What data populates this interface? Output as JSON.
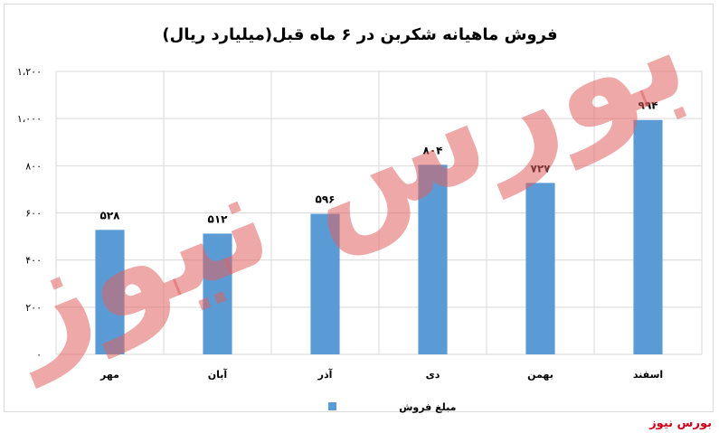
{
  "chart_data": {
    "type": "bar",
    "title": "فروش ماهیانه شکربن در ۶ ماه قبل(میلیارد ریال)",
    "categories": [
      "مهر",
      "آبان",
      "آذر",
      "دی",
      "بهمن",
      "اسفند"
    ],
    "series": [
      {
        "name": "مبلغ فروش",
        "values": [
          528,
          512,
          596,
          804,
          727,
          994
        ],
        "data_labels": [
          "۵۲۸",
          "۵۱۲",
          "۵۹۶",
          "۸۰۴",
          "۷۲۷",
          "۹۹۴"
        ]
      }
    ],
    "ylim": [
      0,
      1200
    ],
    "yticks": [
      0,
      200,
      400,
      600,
      800,
      1000,
      1200
    ],
    "ytick_labels": [
      "۰",
      "۲۰۰",
      "۴۰۰",
      "۶۰۰",
      "۸۰۰",
      "۱،۰۰۰",
      "۱،۲۰۰"
    ],
    "grid": true,
    "legend_position": "bottom",
    "colors": {
      "bar": "#5b9bd5",
      "grid": "#d9d9d9",
      "text": "#000000"
    }
  },
  "watermark": {
    "text": "بورس نیوز",
    "color": "#e06060"
  },
  "credit": {
    "text": "بورس نیوز",
    "color": "#d0021b"
  }
}
